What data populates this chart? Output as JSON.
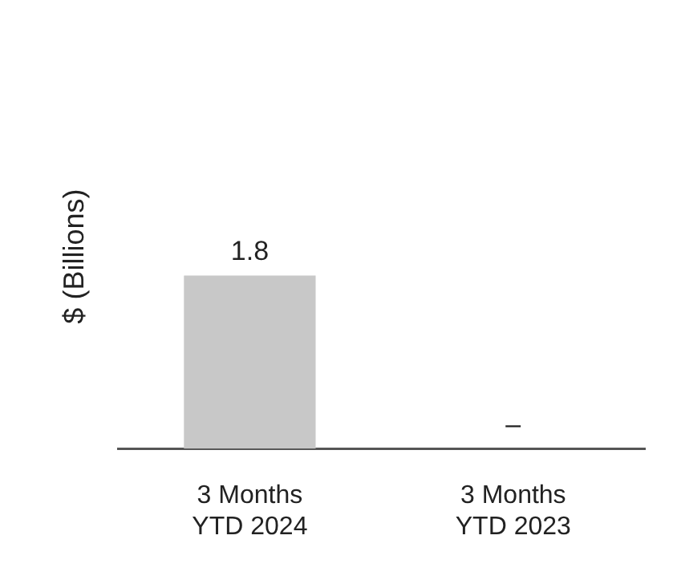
{
  "chart_data": {
    "type": "bar",
    "ylabel": "$ (Billions)",
    "categories": [
      "3 Months\nYTD 2024",
      "3 Months\nYTD 2023"
    ],
    "values": [
      1.8,
      0
    ],
    "value_labels": [
      "1.8",
      "–"
    ],
    "color": "#c8c8c8",
    "grid": false,
    "legend": false
  }
}
